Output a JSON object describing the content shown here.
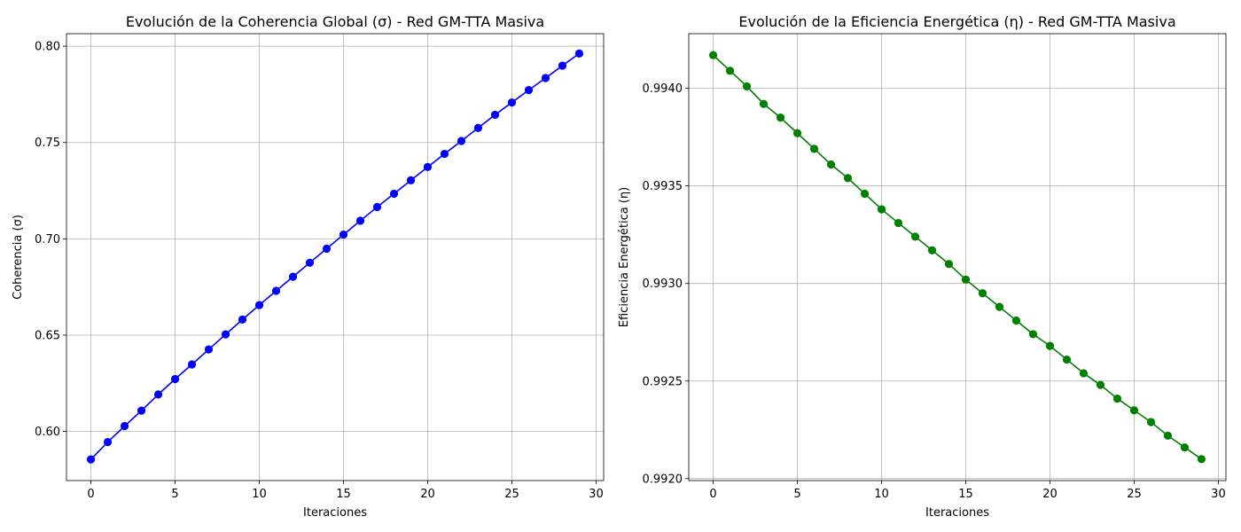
{
  "chart_data": [
    {
      "type": "line",
      "title": "Evolución de la Coherencia Global (σ) - Red GM-TTA Masiva",
      "xlabel": "Iteraciones",
      "ylabel": "Coherencia (σ)",
      "xlim": [
        -1.45,
        30.45
      ],
      "ylim": [
        0.5745,
        0.8065
      ],
      "xticks": [
        0,
        5,
        10,
        15,
        20,
        25,
        30
      ],
      "xtick_labels": [
        "0",
        "5",
        "10",
        "15",
        "20",
        "25",
        "30"
      ],
      "yticks": [
        0.6,
        0.65,
        0.7,
        0.75,
        0.8
      ],
      "ytick_labels": [
        "0.60",
        "0.65",
        "0.70",
        "0.75",
        "0.80"
      ],
      "grid": true,
      "color": "#0000ff",
      "marker": "circle",
      "series": [
        {
          "x": [
            0,
            1,
            2,
            3,
            4,
            5,
            6,
            7,
            8,
            9,
            10,
            11,
            12,
            13,
            14,
            15,
            16,
            17,
            18,
            19,
            20,
            21,
            22,
            23,
            24,
            25,
            26,
            27,
            28,
            29
          ],
          "y": [
            0.5855,
            0.5945,
            0.6028,
            0.6108,
            0.6192,
            0.6272,
            0.6348,
            0.6426,
            0.6504,
            0.6581,
            0.6656,
            0.673,
            0.6803,
            0.6876,
            0.6949,
            0.7022,
            0.7094,
            0.7165,
            0.7234,
            0.7304,
            0.7373,
            0.7441,
            0.7508,
            0.7576,
            0.7644,
            0.7708,
            0.7772,
            0.7835,
            0.7899,
            0.7962
          ]
        }
      ]
    },
    {
      "type": "line",
      "title": "Evolución de la Eficiencia Energética (η) - Red GM-TTA Masiva",
      "xlabel": "Iteraciones",
      "ylabel": "Eficiencia Energética (η)",
      "xlim": [
        -1.45,
        30.45
      ],
      "ylim": [
        0.99199,
        0.99428
      ],
      "xticks": [
        0,
        5,
        10,
        15,
        20,
        25,
        30
      ],
      "xtick_labels": [
        "0",
        "5",
        "10",
        "15",
        "20",
        "25",
        "30"
      ],
      "yticks": [
        0.992,
        0.9925,
        0.993,
        0.9935,
        0.994
      ],
      "ytick_labels": [
        "0.9920",
        "0.9925",
        "0.9930",
        "0.9935",
        "0.9940"
      ],
      "grid": true,
      "color": "#008000",
      "marker": "circle",
      "series": [
        {
          "x": [
            0,
            1,
            2,
            3,
            4,
            5,
            6,
            7,
            8,
            9,
            10,
            11,
            12,
            13,
            14,
            15,
            16,
            17,
            18,
            19,
            20,
            21,
            22,
            23,
            24,
            25,
            26,
            27,
            28,
            29
          ],
          "y": [
            0.99417,
            0.99409,
            0.99401,
            0.99392,
            0.99385,
            0.99377,
            0.99369,
            0.99361,
            0.99354,
            0.99346,
            0.99338,
            0.99331,
            0.99324,
            0.99317,
            0.9931,
            0.99302,
            0.99295,
            0.99288,
            0.99281,
            0.99274,
            0.99268,
            0.99261,
            0.99254,
            0.99248,
            0.99241,
            0.99235,
            0.99229,
            0.99222,
            0.99216,
            0.9921
          ]
        }
      ]
    }
  ]
}
